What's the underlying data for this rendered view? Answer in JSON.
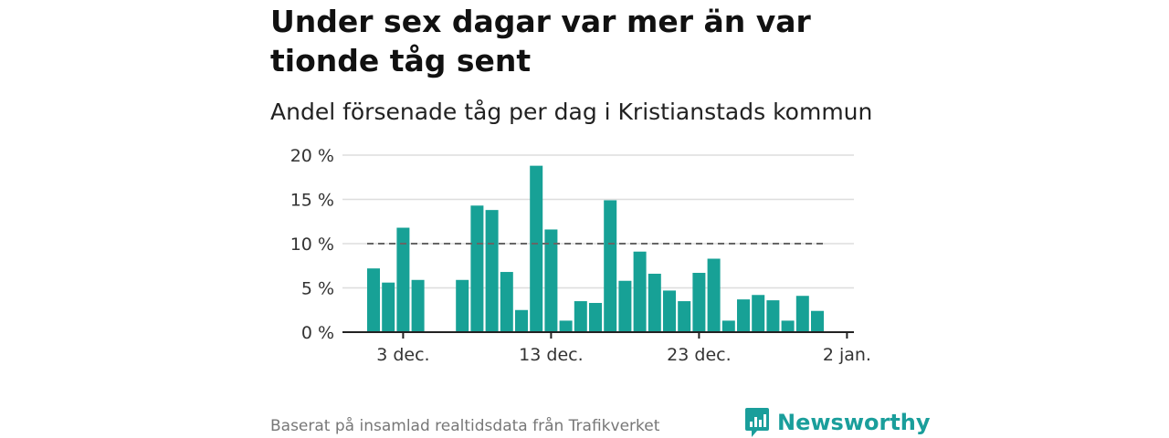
{
  "title": "Under sex dagar var mer än var tionde tåg sent",
  "subtitle": "Andel försenade tåg per dag i Kristianstads kommun",
  "footer": "Baserat på insamlad realtidsdata från Trafikverket",
  "brand": "Newsworthy",
  "colors": {
    "bar": "#17a196",
    "reference": "#666666",
    "grid": "#dddddd",
    "brand": "#1a9e9b"
  },
  "chart_data": {
    "type": "bar",
    "title": "Andel försenade tåg per dag i Kristianstads kommun",
    "xlabel": "",
    "ylabel": "",
    "x_ticks": [
      "3 dec.",
      "13 dec.",
      "23 dec.",
      "2 jan."
    ],
    "y_ticks": [
      "0 %",
      "5 %",
      "10 %",
      "15 %",
      "20 %"
    ],
    "ylim": [
      0,
      20
    ],
    "grid": true,
    "reference_line": 10,
    "series": [
      {
        "x": [
          "2020-12-01",
          "2020-12-02",
          "2020-12-03",
          "2020-12-04",
          "2020-12-05",
          "2020-12-06",
          "2020-12-07",
          "2020-12-08",
          "2020-12-09",
          "2020-12-10",
          "2020-12-11",
          "2020-12-12",
          "2020-12-13",
          "2020-12-14",
          "2020-12-15",
          "2020-12-16",
          "2020-12-17",
          "2020-12-18",
          "2020-12-19",
          "2020-12-20",
          "2020-12-21",
          "2020-12-22",
          "2020-12-23",
          "2020-12-24",
          "2020-12-25",
          "2020-12-26",
          "2020-12-27",
          "2020-12-28",
          "2020-12-29",
          "2020-12-30",
          "2020-12-31"
        ],
        "values": [
          7.2,
          5.6,
          11.8,
          5.9,
          null,
          null,
          5.9,
          14.3,
          13.8,
          6.8,
          2.5,
          18.8,
          11.6,
          1.3,
          3.5,
          3.3,
          14.9,
          5.8,
          9.1,
          6.6,
          4.7,
          3.5,
          6.7,
          8.3,
          1.3,
          3.7,
          4.2,
          3.6,
          1.3,
          4.1,
          2.4
        ]
      }
    ]
  }
}
